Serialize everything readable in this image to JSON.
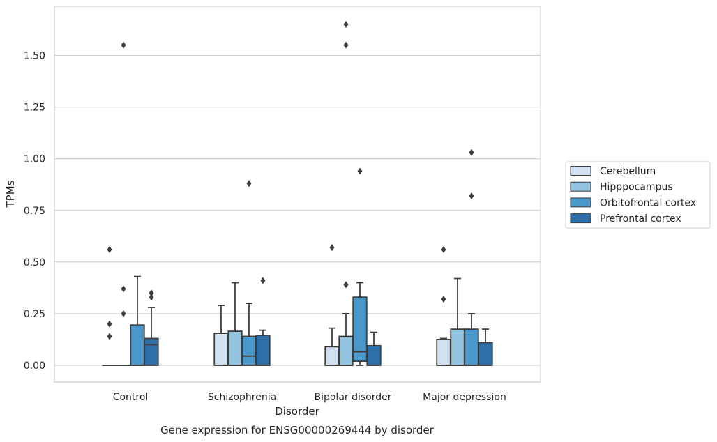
{
  "chart_data": {
    "type": "box",
    "title": "",
    "caption": "Gene expression for ENSG00000269444 by disorder",
    "xlabel": "Disorder",
    "ylabel": "TPMs",
    "ylim": [
      -0.08,
      1.72
    ],
    "yticks": [
      "0.00",
      "0.25",
      "0.50",
      "0.75",
      "1.00",
      "1.25",
      "1.50"
    ],
    "ytick_values": [
      0,
      0.25,
      0.5,
      0.75,
      1.0,
      1.25,
      1.5
    ],
    "grid": "horizontal",
    "legend_position": "right",
    "categories": [
      "Control",
      "Schizophrenia",
      "Bipolar disorder",
      "Major depression"
    ],
    "series": [
      {
        "name": "Cerebellum",
        "color": "#d0e1f2",
        "boxes": [
          {
            "whisker_low": 0,
            "q1": 0,
            "median": 0,
            "q3": 0,
            "whisker_high": 0,
            "outliers": [
              0.14,
              0.2,
              0.56
            ]
          },
          {
            "whisker_low": 0,
            "q1": 0,
            "median": 0,
            "q3": 0.155,
            "whisker_high": 0.29,
            "outliers": []
          },
          {
            "whisker_low": 0,
            "q1": 0,
            "median": 0,
            "q3": 0.09,
            "whisker_high": 0.18,
            "outliers": [
              0.57
            ]
          },
          {
            "whisker_low": 0,
            "q1": 0,
            "median": 0,
            "q3": 0.125,
            "whisker_high": 0.13,
            "outliers": [
              0.32,
              0.56
            ]
          }
        ]
      },
      {
        "name": "Hipppocampus",
        "color": "#94c4df",
        "boxes": [
          {
            "whisker_low": 0,
            "q1": 0,
            "median": 0,
            "q3": 0,
            "whisker_high": 0,
            "outliers": [
              0.25,
              0.37,
              1.55
            ]
          },
          {
            "whisker_low": 0,
            "q1": 0,
            "median": 0,
            "q3": 0.165,
            "whisker_high": 0.4,
            "outliers": []
          },
          {
            "whisker_low": 0,
            "q1": 0,
            "median": 0,
            "q3": 0.14,
            "whisker_high": 0.25,
            "outliers": [
              0.39,
              1.55,
              1.65
            ]
          },
          {
            "whisker_low": 0,
            "q1": 0,
            "median": 0,
            "q3": 0.175,
            "whisker_high": 0.42,
            "outliers": []
          }
        ]
      },
      {
        "name": "Orbitofrontal cortex",
        "color": "#4a98c9",
        "boxes": [
          {
            "whisker_low": 0,
            "q1": 0,
            "median": 0,
            "q3": 0.195,
            "whisker_high": 0.43,
            "outliers": []
          },
          {
            "whisker_low": 0,
            "q1": 0,
            "median": 0.045,
            "q3": 0.14,
            "whisker_high": 0.3,
            "outliers": [
              0.88
            ]
          },
          {
            "whisker_low": 0,
            "q1": 0.02,
            "median": 0.065,
            "q3": 0.33,
            "whisker_high": 0.4,
            "outliers": [
              0.94
            ]
          },
          {
            "whisker_low": 0,
            "q1": 0,
            "median": 0,
            "q3": 0.175,
            "whisker_high": 0.25,
            "outliers": [
              0.82,
              1.03
            ]
          }
        ]
      },
      {
        "name": "Prefrontal cortex",
        "color": "#2d6fab",
        "boxes": [
          {
            "whisker_low": 0,
            "q1": 0,
            "median": 0.1,
            "q3": 0.13,
            "whisker_high": 0.28,
            "outliers": [
              0.33,
              0.35
            ]
          },
          {
            "whisker_low": 0,
            "q1": 0,
            "median": 0,
            "q3": 0.145,
            "whisker_high": 0.17,
            "outliers": [
              0.41
            ]
          },
          {
            "whisker_low": 0,
            "q1": 0,
            "median": 0,
            "q3": 0.095,
            "whisker_high": 0.16,
            "outliers": []
          },
          {
            "whisker_low": 0,
            "q1": 0,
            "median": 0,
            "q3": 0.11,
            "whisker_high": 0.175,
            "outliers": []
          }
        ]
      }
    ]
  }
}
